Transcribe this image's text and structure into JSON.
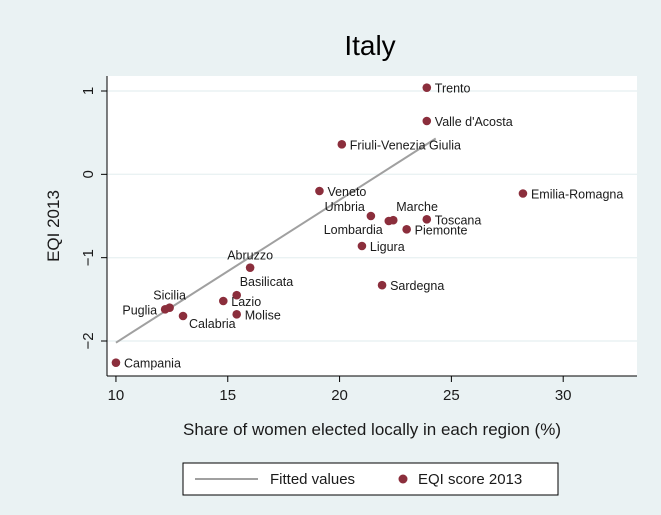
{
  "chart_data": {
    "type": "scatter",
    "title": "Italy",
    "xlabel": "Share of women elected locally in each region (%)",
    "ylabel": "EQI 2013",
    "xlim": [
      9.6,
      33.3
    ],
    "ylim": [
      -2.42,
      1.18
    ],
    "xticks": [
      10,
      15,
      20,
      25,
      30
    ],
    "yticks": [
      -2,
      -1,
      0,
      1
    ],
    "grid": true,
    "legend_position": "bottom",
    "series": [
      {
        "name": "Fitted values",
        "kind": "line",
        "color": "#a0a0a0",
        "x": [
          10.0,
          24.3
        ],
        "y": [
          -2.02,
          0.43
        ]
      },
      {
        "name": "EQI score 2013",
        "kind": "scatter",
        "color": "#8b2e3c",
        "points": [
          {
            "label": "Trento",
            "x": 23.9,
            "y": 1.04,
            "label_pos": "right"
          },
          {
            "label": "Valle d'Acosta",
            "x": 23.9,
            "y": 0.64,
            "label_pos": "right"
          },
          {
            "label": "Friuli-Venezia Giulia",
            "x": 20.1,
            "y": 0.36,
            "label_pos": "right"
          },
          {
            "label": "Veneto",
            "x": 19.1,
            "y": -0.2,
            "label_pos": "right"
          },
          {
            "label": "Emilia-Romagna",
            "x": 28.2,
            "y": -0.23,
            "label_pos": "right"
          },
          {
            "label": "Umbria",
            "x": 21.4,
            "y": -0.5,
            "label_pos": "upper-left"
          },
          {
            "label": "Marche",
            "x": 22.4,
            "y": -0.55,
            "label_pos": "upper-right"
          },
          {
            "label": "Toscana",
            "x": 23.9,
            "y": -0.54,
            "label_pos": "right"
          },
          {
            "label": "Lombardia",
            "x": 22.2,
            "y": -0.56,
            "label_pos": "lower-left"
          },
          {
            "label": "Piemonte",
            "x": 23.0,
            "y": -0.66,
            "label_pos": "right"
          },
          {
            "label": "Ligura",
            "x": 21.0,
            "y": -0.86,
            "label_pos": "right"
          },
          {
            "label": "Abruzzo",
            "x": 16.0,
            "y": -1.12,
            "label_pos": "above"
          },
          {
            "label": "Sardegna",
            "x": 21.9,
            "y": -1.33,
            "label_pos": "right"
          },
          {
            "label": "Basilicata",
            "x": 15.4,
            "y": -1.45,
            "label_pos": "upper-right"
          },
          {
            "label": "Lazio",
            "x": 14.8,
            "y": -1.52,
            "label_pos": "right"
          },
          {
            "label": "Sicilia",
            "x": 12.4,
            "y": -1.6,
            "label_pos": "above"
          },
          {
            "label": "Puglia",
            "x": 12.2,
            "y": -1.62,
            "label_pos": "left"
          },
          {
            "label": "Molise",
            "x": 15.4,
            "y": -1.68,
            "label_pos": "right"
          },
          {
            "label": "Calabria",
            "x": 13.0,
            "y": -1.7,
            "label_pos": "lower-right"
          },
          {
            "label": "Campania",
            "x": 10.0,
            "y": -2.26,
            "label_pos": "right"
          }
        ]
      }
    ]
  }
}
